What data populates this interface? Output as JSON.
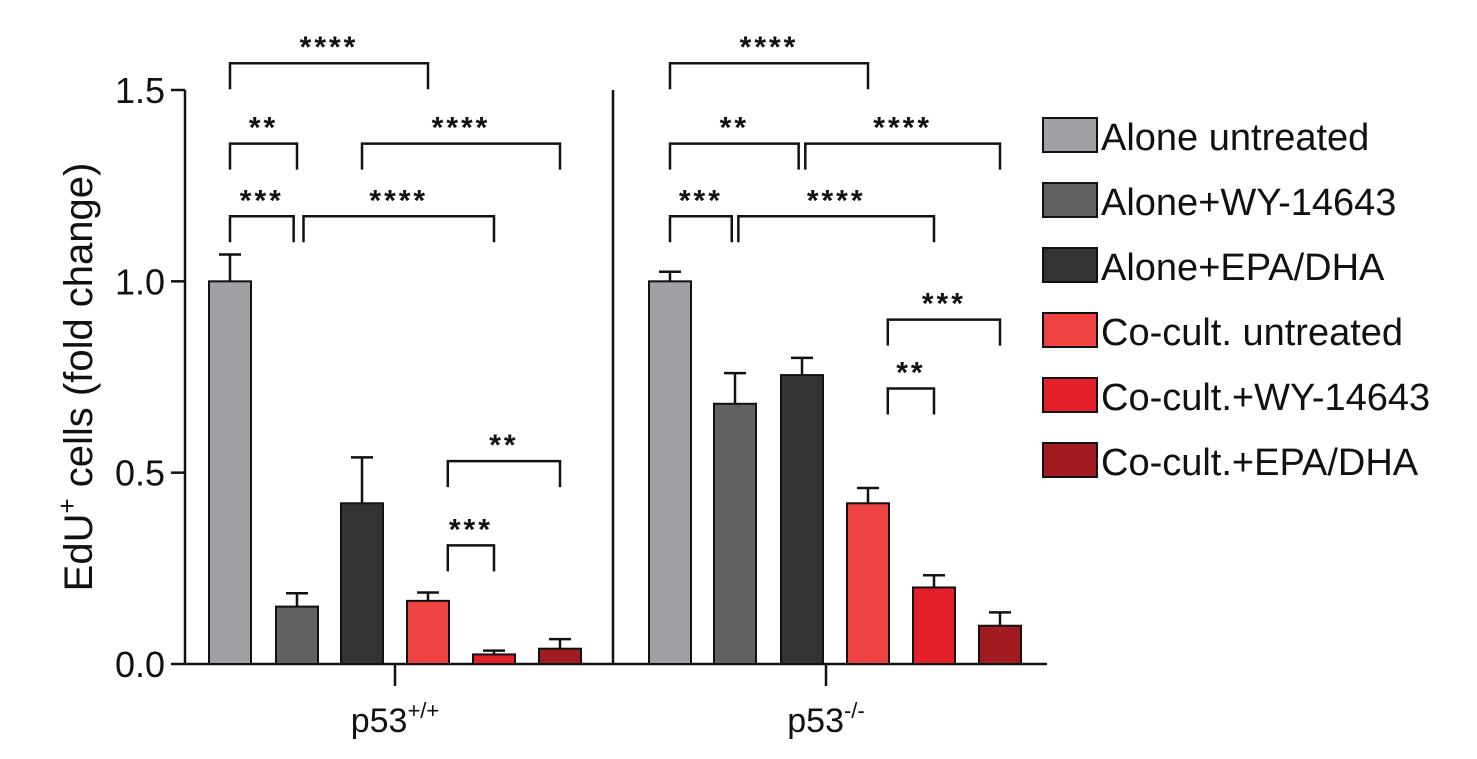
{
  "chart_data": {
    "type": "bar",
    "ylabel_main": "EdU",
    "ylabel_sup": "+",
    "ylabel_rest": " cells (fold change)",
    "ylim": [
      0,
      1.5
    ],
    "yticks": [
      {
        "value": 0.0,
        "label": "0.0"
      },
      {
        "value": 0.5,
        "label": "0.5"
      },
      {
        "value": 1.0,
        "label": "1.0"
      },
      {
        "value": 1.5,
        "label": "1.5"
      }
    ],
    "groups": [
      {
        "label": "p53",
        "sup": "+/+"
      },
      {
        "label": "p53",
        "sup": "-/-"
      }
    ],
    "series": [
      {
        "name": "Alone untreated",
        "color": "#a0a0a4",
        "values": [
          1.0,
          1.0
        ],
        "errors": [
          0.07,
          0.025
        ]
      },
      {
        "name": "Alone+WY-14643",
        "color": "#606060",
        "values": [
          0.15,
          0.68
        ],
        "errors": [
          0.035,
          0.08
        ]
      },
      {
        "name": "Alone+EPA/DHA",
        "color": "#333333",
        "values": [
          0.42,
          0.755
        ],
        "errors": [
          0.12,
          0.045
        ]
      },
      {
        "name": "Co-cult. untreated",
        "color": "#ee4444",
        "values": [
          0.165,
          0.42
        ],
        "errors": [
          0.022,
          0.04
        ]
      },
      {
        "name": "Co-cult.+WY-14643",
        "color": "#e3202a",
        "values": [
          0.025,
          0.2
        ],
        "errors": [
          0.01,
          0.032
        ]
      },
      {
        "name": "Co-cult.+EPA/DHA",
        "color": "#a01c20",
        "values": [
          0.04,
          0.1
        ],
        "errors": [
          0.025,
          0.035
        ]
      }
    ],
    "significance": [
      {
        "group": 0,
        "from": 0,
        "to": 3,
        "level": 1.57,
        "label": "****"
      },
      {
        "group": 0,
        "from": 0,
        "to": 1,
        "level": 1.36,
        "label": "**"
      },
      {
        "group": 0,
        "from": 2,
        "to": 5,
        "level": 1.36,
        "label": "****"
      },
      {
        "group": 0,
        "from": 0,
        "to": 0.95,
        "level": 1.17,
        "label": "***"
      },
      {
        "group": 0,
        "from": 1.1,
        "to": 4,
        "level": 1.17,
        "label": "****"
      },
      {
        "group": 0,
        "from": 3.3,
        "to": 5,
        "level": 0.53,
        "label": "**"
      },
      {
        "group": 0,
        "from": 3.3,
        "to": 4,
        "level": 0.31,
        "label": "***"
      },
      {
        "group": 1,
        "from": 0,
        "to": 3,
        "level": 1.57,
        "label": "****"
      },
      {
        "group": 1,
        "from": 0,
        "to": 1.95,
        "level": 1.36,
        "label": "**"
      },
      {
        "group": 1,
        "from": 2.05,
        "to": 5,
        "level": 1.36,
        "label": "****"
      },
      {
        "group": 1,
        "from": 0,
        "to": 0.95,
        "level": 1.17,
        "label": "***"
      },
      {
        "group": 1,
        "from": 1.05,
        "to": 4,
        "level": 1.17,
        "label": "****"
      },
      {
        "group": 1,
        "from": 3.3,
        "to": 5,
        "level": 0.9,
        "label": "***"
      },
      {
        "group": 1,
        "from": 3.3,
        "to": 4,
        "level": 0.72,
        "label": "**"
      }
    ],
    "grid": false,
    "legend_position": "right"
  }
}
